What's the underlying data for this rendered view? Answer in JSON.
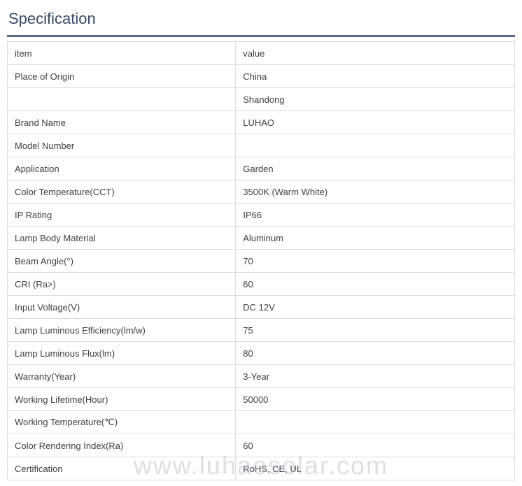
{
  "title": "Specification",
  "colors": {
    "title_color": "#3a4a6b",
    "rule_color": "#5a6a88",
    "border_color": "#d9dce0",
    "text_color": "#3a3f47",
    "watermark_color": "rgba(180,185,195,0.45)",
    "background": "#ffffff"
  },
  "typography": {
    "title_fontsize": 22,
    "cell_fontsize": 13,
    "watermark_fontsize": 36
  },
  "table": {
    "columns": [
      "item",
      "value"
    ],
    "col_widths_pct": [
      45,
      55
    ],
    "rows": [
      [
        "Place of Origin",
        "China"
      ],
      [
        "",
        "Shandong"
      ],
      [
        "Brand Name",
        "LUHAO"
      ],
      [
        "Model Number",
        ""
      ],
      [
        "Application",
        "Garden"
      ],
      [
        "Color Temperature(CCT)",
        "3500K (Warm White)"
      ],
      [
        "IP Rating",
        "IP66"
      ],
      [
        "Lamp Body Material",
        "Aluminum"
      ],
      [
        "Beam Angle(°)",
        "70"
      ],
      [
        "CRI (Ra>)",
        "60"
      ],
      [
        "Input Voltage(V)",
        "DC 12V"
      ],
      [
        "Lamp Luminous Efficiency(lm/w)",
        "75"
      ],
      [
        "Lamp Luminous Flux(lm)",
        "80"
      ],
      [
        "Warranty(Year)",
        "3-Year"
      ],
      [
        "Working Lifetime(Hour)",
        "50000"
      ],
      [
        "Working Temperature(℃)",
        ""
      ],
      [
        "Color Rendering Index(Ra)",
        "60"
      ],
      [
        "Certification",
        "RoHS, CE, UL"
      ]
    ]
  },
  "watermark": "www.luhaosolar.com"
}
